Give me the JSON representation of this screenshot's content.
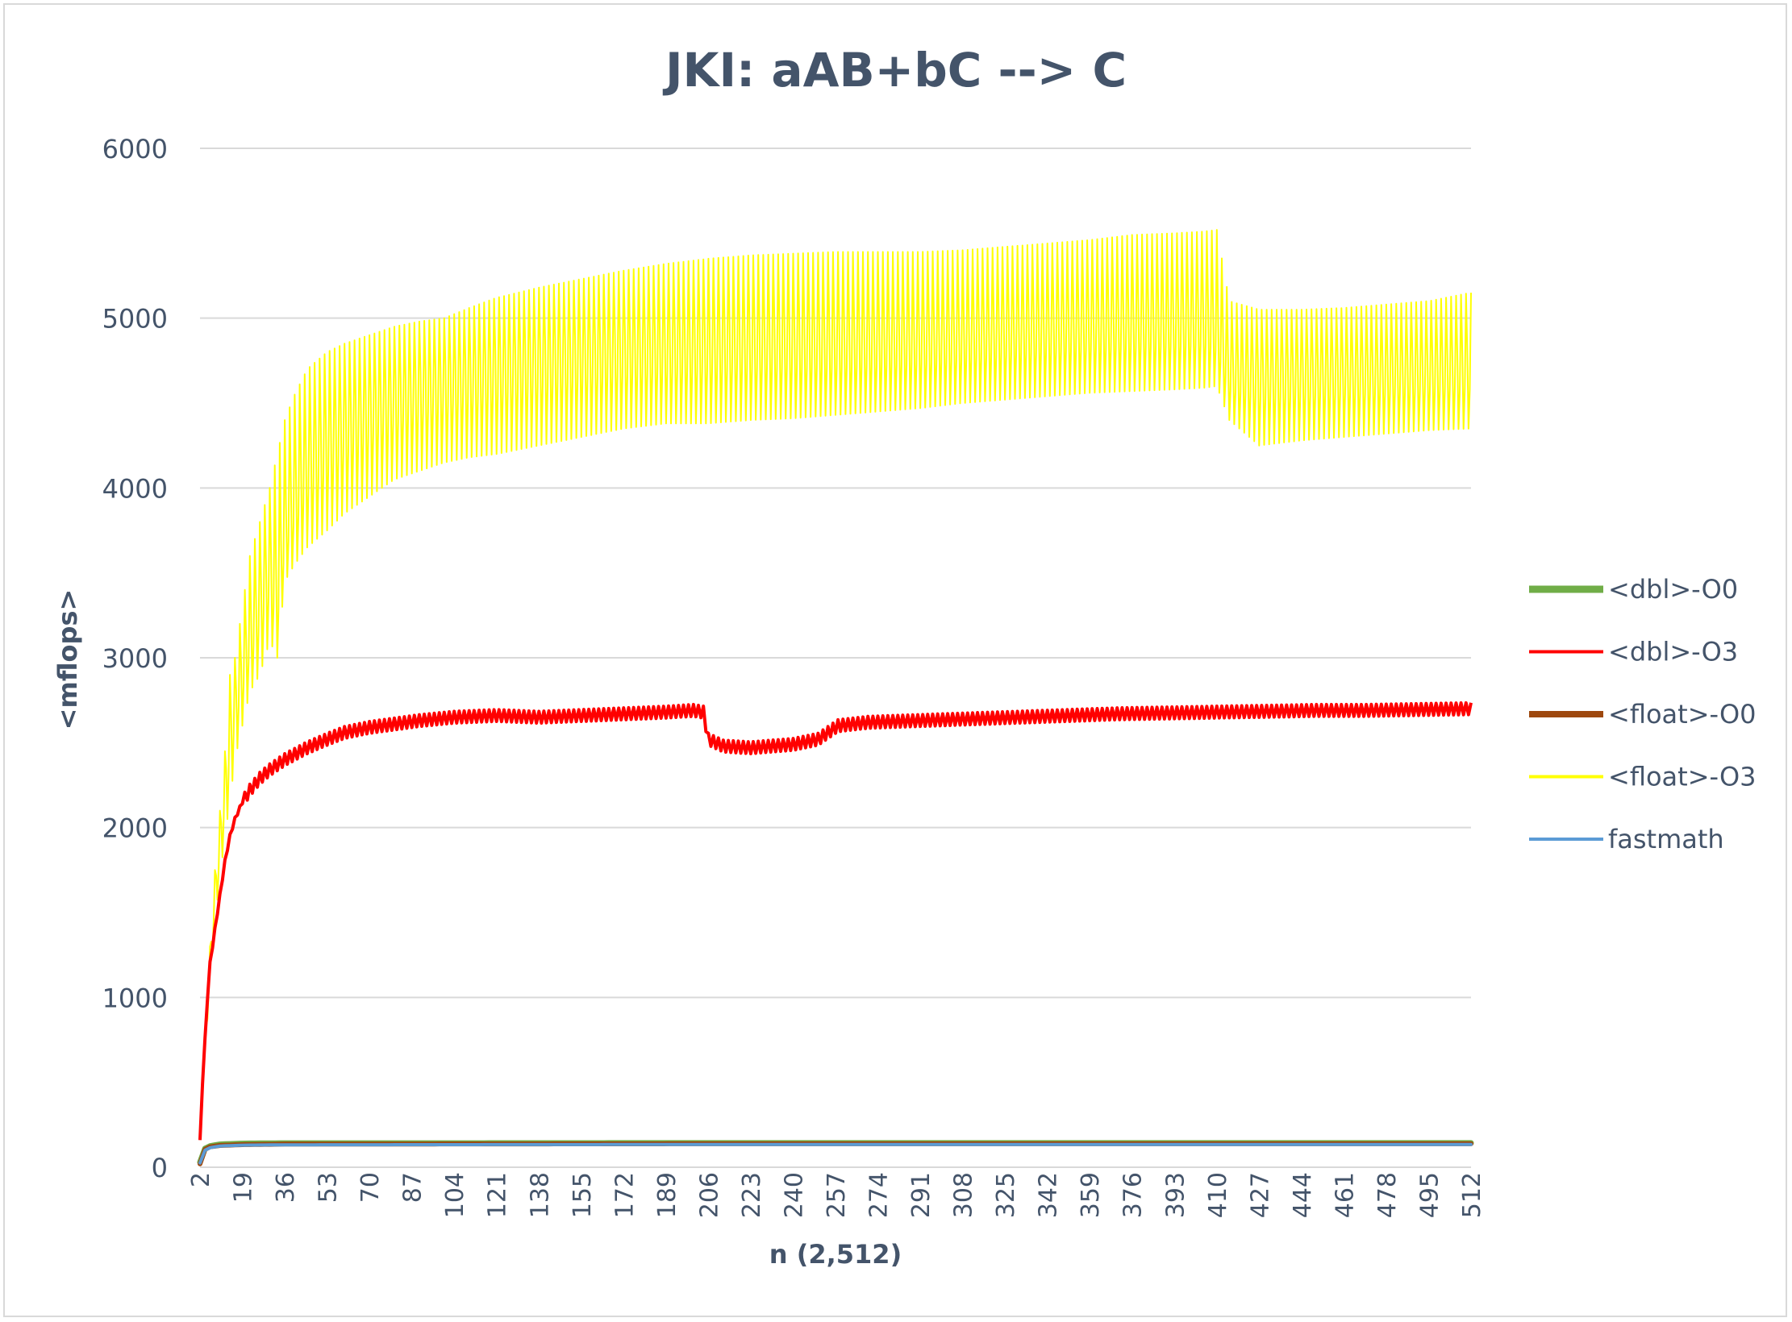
{
  "chart_data": {
    "type": "line",
    "title": "JKI: aAB+bC --> C",
    "xlabel": "n (2,512)",
    "ylabel": "<mflops>",
    "xlim": [
      2,
      512
    ],
    "ylim": [
      0,
      6000
    ],
    "yticks": [
      0,
      1000,
      2000,
      3000,
      4000,
      5000,
      6000
    ],
    "xticks": [
      2,
      19,
      36,
      53,
      70,
      87,
      104,
      121,
      138,
      155,
      172,
      189,
      206,
      223,
      240,
      257,
      274,
      291,
      308,
      325,
      342,
      359,
      376,
      393,
      410,
      427,
      444,
      461,
      478,
      495,
      512
    ],
    "grid": "horizontal",
    "legend_position": "right",
    "series": [
      {
        "name": "<dbl>-O0",
        "color": "#70ad47",
        "x": [
          2,
          4,
          6,
          10,
          19,
          36,
          100,
          200,
          300,
          400,
          512
        ],
        "values": [
          30,
          110,
          125,
          135,
          140,
          142,
          142,
          143,
          143,
          143,
          143
        ]
      },
      {
        "name": "<dbl>-O3",
        "color": "#ff0000",
        "x": [
          2,
          3,
          4,
          5,
          6,
          8,
          10,
          12,
          14,
          16,
          19,
          22,
          26,
          30,
          36,
          45,
          53,
          60,
          70,
          80,
          90,
          104,
          121,
          138,
          155,
          172,
          189,
          200,
          204,
          206,
          212,
          223,
          240,
          250,
          258,
          270,
          290,
          310,
          330,
          350,
          370,
          390,
          410,
          430,
          450,
          470,
          490,
          512
        ],
        "values": [
          150,
          500,
          750,
          1000,
          1200,
          1400,
          1600,
          1800,
          1950,
          2050,
          2150,
          2220,
          2290,
          2340,
          2400,
          2470,
          2520,
          2560,
          2590,
          2610,
          2630,
          2650,
          2660,
          2650,
          2660,
          2670,
          2680,
          2690,
          2680,
          2520,
          2480,
          2470,
          2490,
          2520,
          2600,
          2620,
          2630,
          2640,
          2650,
          2660,
          2670,
          2675,
          2680,
          2685,
          2690,
          2690,
          2695,
          2700
        ],
        "band": 70
      },
      {
        "name": "<float>-O0",
        "color": "#9e480e",
        "x": [
          2,
          4,
          6,
          10,
          19,
          36,
          100,
          200,
          300,
          400,
          512
        ],
        "values": [
          20,
          105,
          120,
          128,
          133,
          136,
          137,
          138,
          138,
          138,
          138
        ]
      },
      {
        "name": "<float>-O3",
        "color": "#ffff00",
        "x": [
          2,
          4,
          6,
          8,
          10,
          12,
          14,
          16,
          19,
          22,
          26,
          30,
          33,
          36,
          40,
          45,
          53,
          60,
          70,
          80,
          90,
          100,
          110,
          121,
          138,
          155,
          172,
          189,
          206,
          223,
          240,
          257,
          274,
          291,
          308,
          325,
          342,
          359,
          376,
          393,
          405,
          410,
          415,
          427,
          444,
          461,
          478,
          495,
          512
        ],
        "values": [
          200,
          700,
          1200,
          1600,
          1900,
          2200,
          2500,
          2700,
          2900,
          3100,
          3300,
          3500,
          3300,
          3700,
          3900,
          4100,
          4250,
          4350,
          4450,
          4520,
          4580,
          4620,
          4660,
          4700,
          4750,
          4780,
          4800,
          4810,
          4820,
          4830,
          4830,
          4820,
          4830,
          4840,
          4860,
          4890,
          4910,
          4920,
          4930,
          4940,
          4950,
          4900,
          4650,
          4640,
          4650,
          4660,
          4660,
          4670,
          4680
        ],
        "high": [
          200,
          700,
          1300,
          1750,
          2100,
          2450,
          2900,
          3000,
          3300,
          3600,
          3800,
          4000,
          4200,
          4400,
          4550,
          4700,
          4800,
          4850,
          4900,
          4950,
          4980,
          5000,
          5060,
          5120,
          5180,
          5230,
          5280,
          5320,
          5350,
          5370,
          5380,
          5390,
          5390,
          5390,
          5400,
          5420,
          5440,
          5460,
          5490,
          5500,
          5510,
          5520,
          5100,
          5050,
          5050,
          5060,
          5080,
          5100,
          5150
        ],
        "low": [
          200,
          650,
          1100,
          1450,
          1700,
          1950,
          2150,
          2400,
          2600,
          2800,
          2900,
          3100,
          3000,
          3450,
          3550,
          3650,
          3750,
          3850,
          3950,
          4050,
          4100,
          4150,
          4180,
          4200,
          4250,
          4300,
          4350,
          4380,
          4380,
          4400,
          4410,
          4430,
          4450,
          4470,
          4500,
          4520,
          4540,
          4560,
          4570,
          4580,
          4590,
          4600,
          4400,
          4250,
          4280,
          4300,
          4320,
          4340,
          4350
        ]
      },
      {
        "name": "fastmath",
        "color": "#5b9bd5",
        "x": [
          2,
          4,
          6,
          10,
          19,
          36,
          100,
          200,
          300,
          400,
          512
        ],
        "values": [
          25,
          100,
          115,
          125,
          130,
          132,
          133,
          134,
          134,
          134,
          134
        ]
      }
    ]
  }
}
